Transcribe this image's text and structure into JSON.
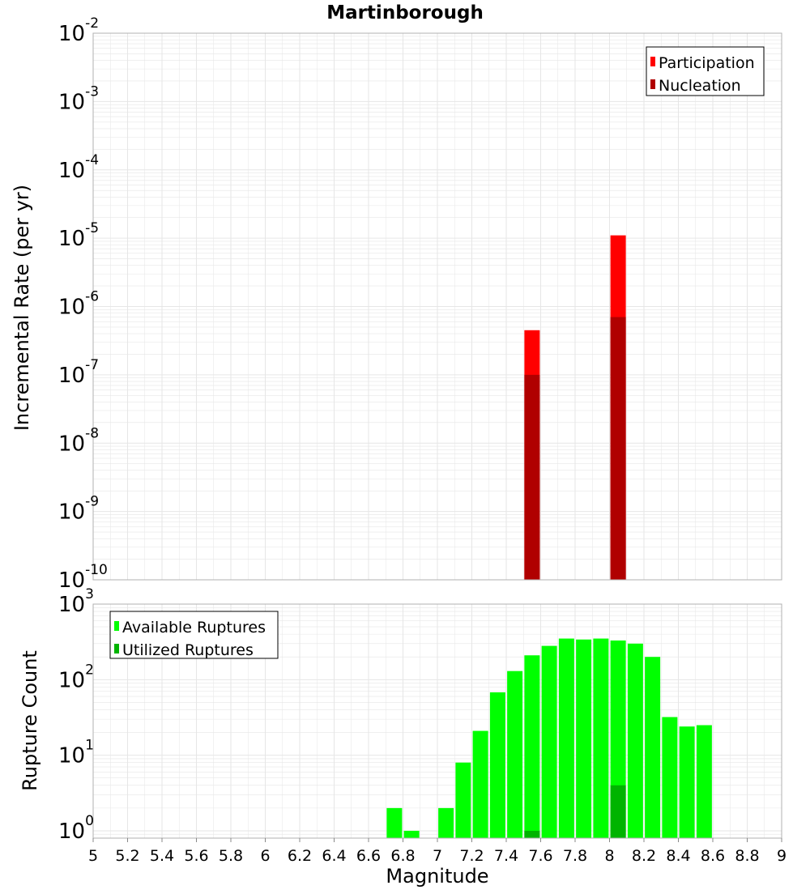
{
  "title": "Martinborough",
  "colors": {
    "participation": "#ff0000",
    "nucleation": "#b00000",
    "available": "#00ff00",
    "utilized": "#00b400",
    "grid": "#e6e6e6",
    "frame": "#b0b0b0"
  },
  "chart_data": [
    {
      "type": "bar",
      "name": "rate-panel",
      "ylabel": "Incremental Rate (per yr)",
      "yscale": "log",
      "ylim": [
        1e-10,
        0.01
      ],
      "xlim": [
        5,
        9
      ],
      "grid": true,
      "legend_position": "top-right",
      "y_ticks": [
        {
          "base": "10",
          "exp": "-10",
          "value": 1e-10
        },
        {
          "base": "10",
          "exp": "-9",
          "value": 1e-09
        },
        {
          "base": "10",
          "exp": "-8",
          "value": 1e-08
        },
        {
          "base": "10",
          "exp": "-7",
          "value": 1e-07
        },
        {
          "base": "10",
          "exp": "-6",
          "value": 1e-06
        },
        {
          "base": "10",
          "exp": "-5",
          "value": 1e-05
        },
        {
          "base": "10",
          "exp": "-4",
          "value": 0.0001
        },
        {
          "base": "10",
          "exp": "-3",
          "value": 0.001
        },
        {
          "base": "10",
          "exp": "-2",
          "value": 0.01
        }
      ],
      "series": [
        {
          "name": "Participation",
          "x": [
            7.55,
            8.05
          ],
          "values": [
            4.5e-07,
            1.1e-05
          ]
        },
        {
          "name": "Nucleation",
          "x": [
            7.55,
            8.05
          ],
          "values": [
            1e-07,
            7e-07
          ]
        }
      ]
    },
    {
      "type": "bar",
      "name": "count-panel",
      "ylabel": "Rupture Count",
      "xlabel": "Magnitude",
      "yscale": "log",
      "ylim": [
        0.8,
        1000
      ],
      "xlim": [
        5,
        9
      ],
      "grid": true,
      "legend_position": "top-left",
      "y_ticks": [
        {
          "base": "10",
          "exp": "0",
          "value": 1
        },
        {
          "base": "10",
          "exp": "1",
          "value": 10
        },
        {
          "base": "10",
          "exp": "2",
          "value": 100
        },
        {
          "base": "10",
          "exp": "3",
          "value": 1000
        }
      ],
      "x_ticks": [
        "5",
        "5.2",
        "5.4",
        "5.6",
        "5.8",
        "6",
        "6.2",
        "6.4",
        "6.6",
        "6.8",
        "7",
        "7.2",
        "7.4",
        "7.6",
        "7.8",
        "8",
        "8.2",
        "8.4",
        "8.6",
        "8.8",
        "9"
      ],
      "series": [
        {
          "name": "Available Ruptures",
          "x": [
            6.75,
            6.85,
            7.05,
            7.15,
            7.25,
            7.35,
            7.45,
            7.55,
            7.65,
            7.75,
            7.85,
            7.95,
            8.05,
            8.15,
            8.25,
            8.35,
            8.45,
            8.55
          ],
          "values": [
            2,
            1,
            2,
            8,
            21,
            68,
            130,
            210,
            280,
            350,
            340,
            350,
            330,
            300,
            200,
            32,
            24,
            25
          ]
        },
        {
          "name": "Utilized Ruptures",
          "x": [
            7.55,
            8.05
          ],
          "values": [
            1,
            4
          ]
        }
      ]
    }
  ]
}
